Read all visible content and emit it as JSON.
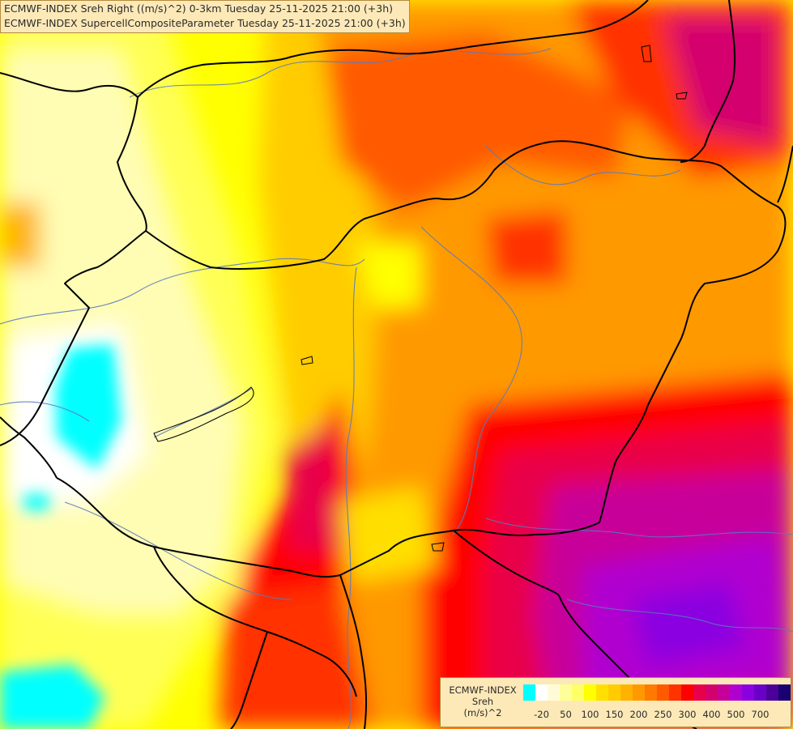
{
  "title": {
    "line1": "ECMWF-INDEX Sreh Right ((m/s)^2) 0-3km Tuesday 25-11-2025 21:00 (+3h)",
    "line2": "ECMWF-INDEX SupercellCompositeParameter Tuesday 25-11-2025 21:00 (+3h)"
  },
  "legend": {
    "model": "ECMWF-INDEX",
    "variable": "Sreh",
    "unit": "(m/s)^2",
    "colors": [
      "#00ffff",
      "#ffffff",
      "#fffbd6",
      "#ffff99",
      "#ffff66",
      "#ffff00",
      "#ffdf00",
      "#ffcc00",
      "#ffb300",
      "#ff9900",
      "#ff7a00",
      "#ff5a00",
      "#ff3300",
      "#ff0000",
      "#e8004a",
      "#d4006e",
      "#c8009a",
      "#b000d0",
      "#8a00e0",
      "#6a00c8",
      "#4a0099",
      "#1a0070"
    ],
    "ticks": [
      {
        "label": "-20",
        "index": 1
      },
      {
        "label": "50",
        "index": 3
      },
      {
        "label": "100",
        "index": 5
      },
      {
        "label": "150",
        "index": 7
      },
      {
        "label": "200",
        "index": 9
      },
      {
        "label": "250",
        "index": 11
      },
      {
        "label": "300",
        "index": 13
      },
      {
        "label": "400",
        "index": 15
      },
      {
        "label": "500",
        "index": 17
      },
      {
        "label": "700",
        "index": 19
      }
    ]
  },
  "map_colors": {
    "ocean_cyan": "#00ffff",
    "white": "#ffffff",
    "pale": "#fffbd6",
    "light_yellow": "#ffff99",
    "yellow": "#ffff00",
    "gold": "#ffcc00",
    "orange": "#ff9900",
    "deep_orange": "#ff5a00",
    "red": "#ff0000",
    "crimson": "#e8004a",
    "magenta": "#c8009a",
    "purple": "#b000d0",
    "border_color": "#000000",
    "river_color": "#5a7abf"
  }
}
